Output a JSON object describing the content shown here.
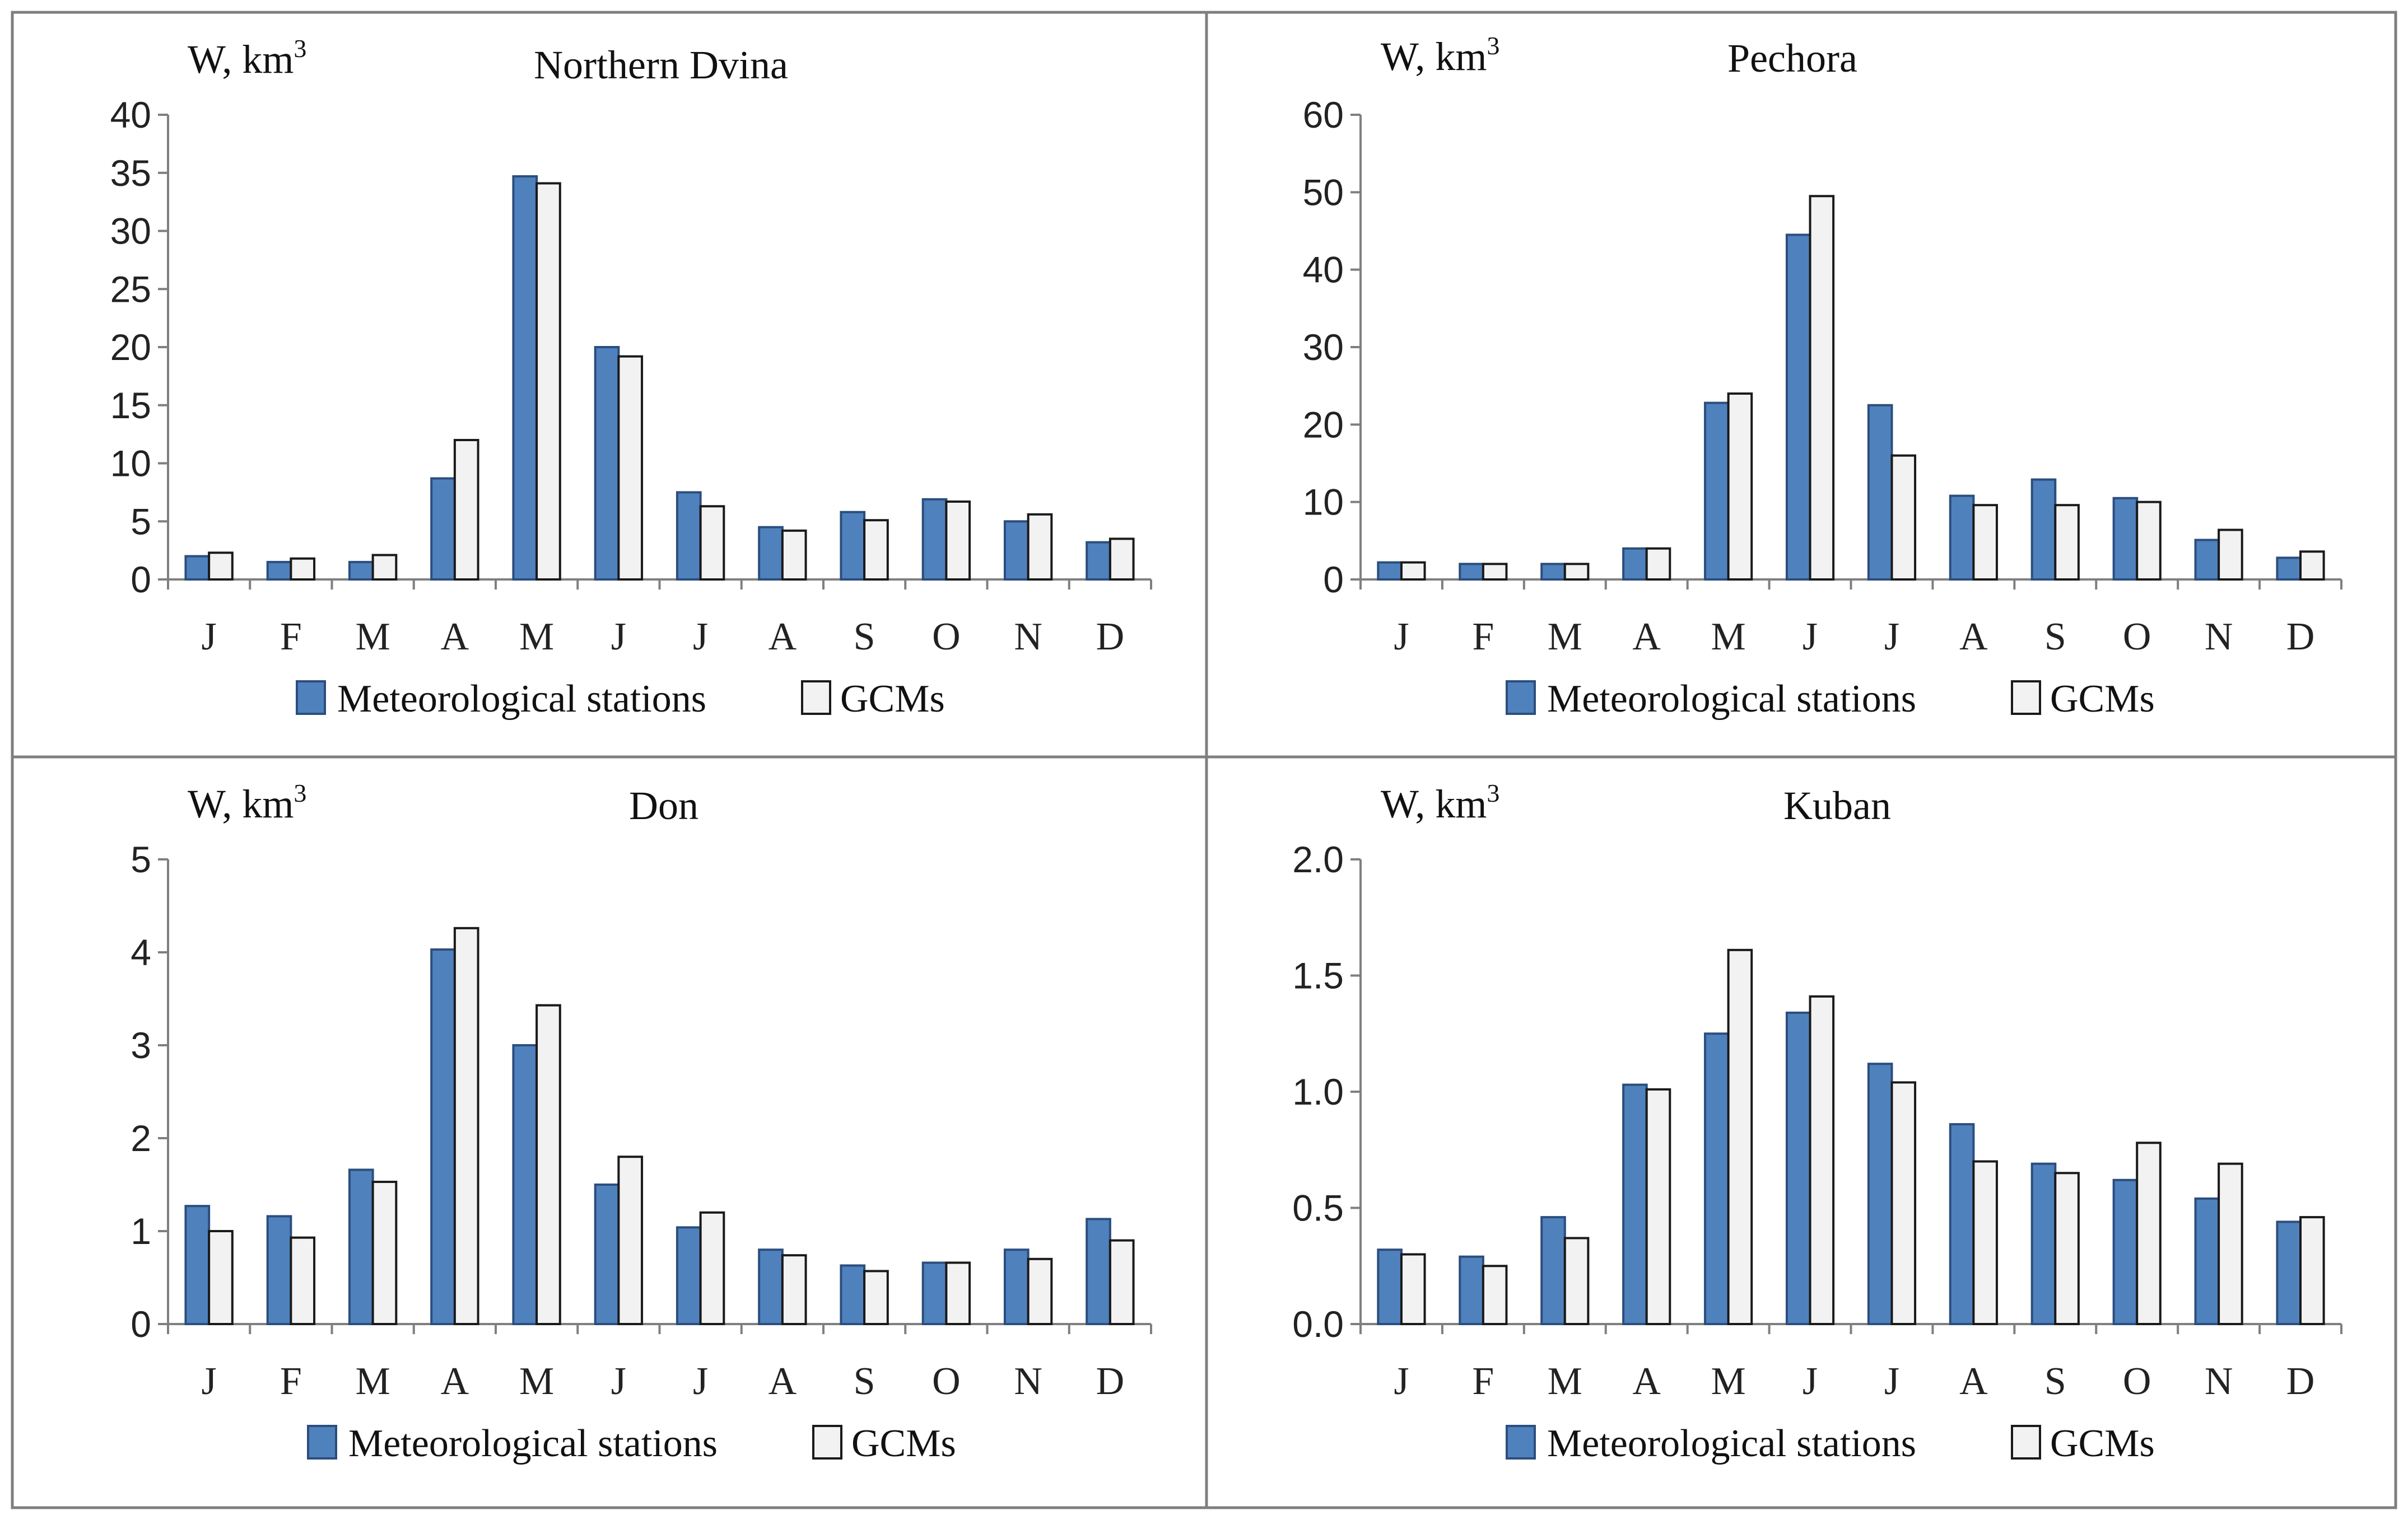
{
  "colors": {
    "meteo_fill": "#4f81bd",
    "meteo_stroke": "#2b4e7d",
    "gcm_fill": "#f2f2f2",
    "gcm_stroke": "#1a1a1a",
    "frame": "#7f7f7f"
  },
  "chart_data": [
    {
      "type": "bar",
      "title": "Northern Dvina",
      "ylabel": "W, km",
      "ylabel_sup": "3",
      "categories": [
        "J",
        "F",
        "M",
        "A",
        "M",
        "J",
        "J",
        "A",
        "S",
        "O",
        "N",
        "D"
      ],
      "ylim": [
        0,
        40
      ],
      "yticks": [
        0,
        5,
        10,
        15,
        20,
        25,
        30,
        35,
        40
      ],
      "ytick_labels": [
        "0",
        "5",
        "10",
        "15",
        "20",
        "25",
        "30",
        "35",
        "40"
      ],
      "series": [
        {
          "name": "Meteorological stations",
          "values": [
            2.0,
            1.5,
            1.5,
            8.7,
            34.7,
            20.0,
            7.5,
            4.5,
            5.8,
            6.9,
            5.0,
            3.2
          ]
        },
        {
          "name": "GCMs",
          "values": [
            2.3,
            1.8,
            2.1,
            12.0,
            34.1,
            19.2,
            6.3,
            4.2,
            5.1,
            6.7,
            5.6,
            3.5
          ]
        }
      ],
      "legend": "bottom"
    },
    {
      "type": "bar",
      "title": "Pechora",
      "ylabel": "W, km",
      "ylabel_sup": "3",
      "categories": [
        "J",
        "F",
        "M",
        "A",
        "M",
        "J",
        "J",
        "A",
        "S",
        "O",
        "N",
        "D"
      ],
      "ylim": [
        0,
        60
      ],
      "yticks": [
        0,
        10,
        20,
        30,
        40,
        50,
        60
      ],
      "ytick_labels": [
        "0",
        "10",
        "20",
        "30",
        "40",
        "50",
        "60"
      ],
      "series": [
        {
          "name": "Meteorological stations",
          "values": [
            2.2,
            2.0,
            2.0,
            4.0,
            22.8,
            44.5,
            22.5,
            10.8,
            12.9,
            10.5,
            5.1,
            2.8
          ]
        },
        {
          "name": "GCMs",
          "values": [
            2.2,
            2.0,
            2.0,
            4.0,
            24.0,
            49.5,
            16.0,
            9.6,
            9.6,
            10.0,
            6.4,
            3.6
          ]
        }
      ],
      "legend": "bottom"
    },
    {
      "type": "bar",
      "title": "Don",
      "ylabel": "W, km",
      "ylabel_sup": "3",
      "categories": [
        "J",
        "F",
        "M",
        "A",
        "M",
        "J",
        "J",
        "A",
        "S",
        "O",
        "N",
        "D"
      ],
      "ylim": [
        0,
        5
      ],
      "yticks": [
        0,
        1,
        2,
        3,
        4,
        5
      ],
      "ytick_labels": [
        "0",
        "1",
        "2",
        "3",
        "4",
        "5"
      ],
      "series": [
        {
          "name": "Meteorological stations",
          "values": [
            1.27,
            1.16,
            1.66,
            4.03,
            3.0,
            1.5,
            1.04,
            0.8,
            0.63,
            0.66,
            0.8,
            1.13
          ]
        },
        {
          "name": "GCMs",
          "values": [
            1.0,
            0.93,
            1.53,
            4.26,
            3.43,
            1.8,
            1.2,
            0.74,
            0.57,
            0.66,
            0.7,
            0.9
          ]
        }
      ],
      "legend": "bottom"
    },
    {
      "type": "bar",
      "title": "Kuban",
      "ylabel": "W, km",
      "ylabel_sup": "3",
      "categories": [
        "J",
        "F",
        "M",
        "A",
        "M",
        "J",
        "J",
        "A",
        "S",
        "O",
        "N",
        "D"
      ],
      "ylim": [
        0,
        2
      ],
      "yticks": [
        0,
        0.5,
        1.0,
        1.5,
        2.0
      ],
      "ytick_labels": [
        "0.0",
        "0.5",
        "1.0",
        "1.5",
        "2.0"
      ],
      "series": [
        {
          "name": "Meteorological stations",
          "values": [
            0.32,
            0.29,
            0.46,
            1.03,
            1.25,
            1.34,
            1.12,
            0.86,
            0.69,
            0.62,
            0.54,
            0.44
          ]
        },
        {
          "name": "GCMs",
          "values": [
            0.3,
            0.25,
            0.37,
            1.01,
            1.61,
            1.41,
            1.04,
            0.7,
            0.65,
            0.78,
            0.69,
            0.46
          ]
        }
      ],
      "legend": "bottom"
    }
  ]
}
